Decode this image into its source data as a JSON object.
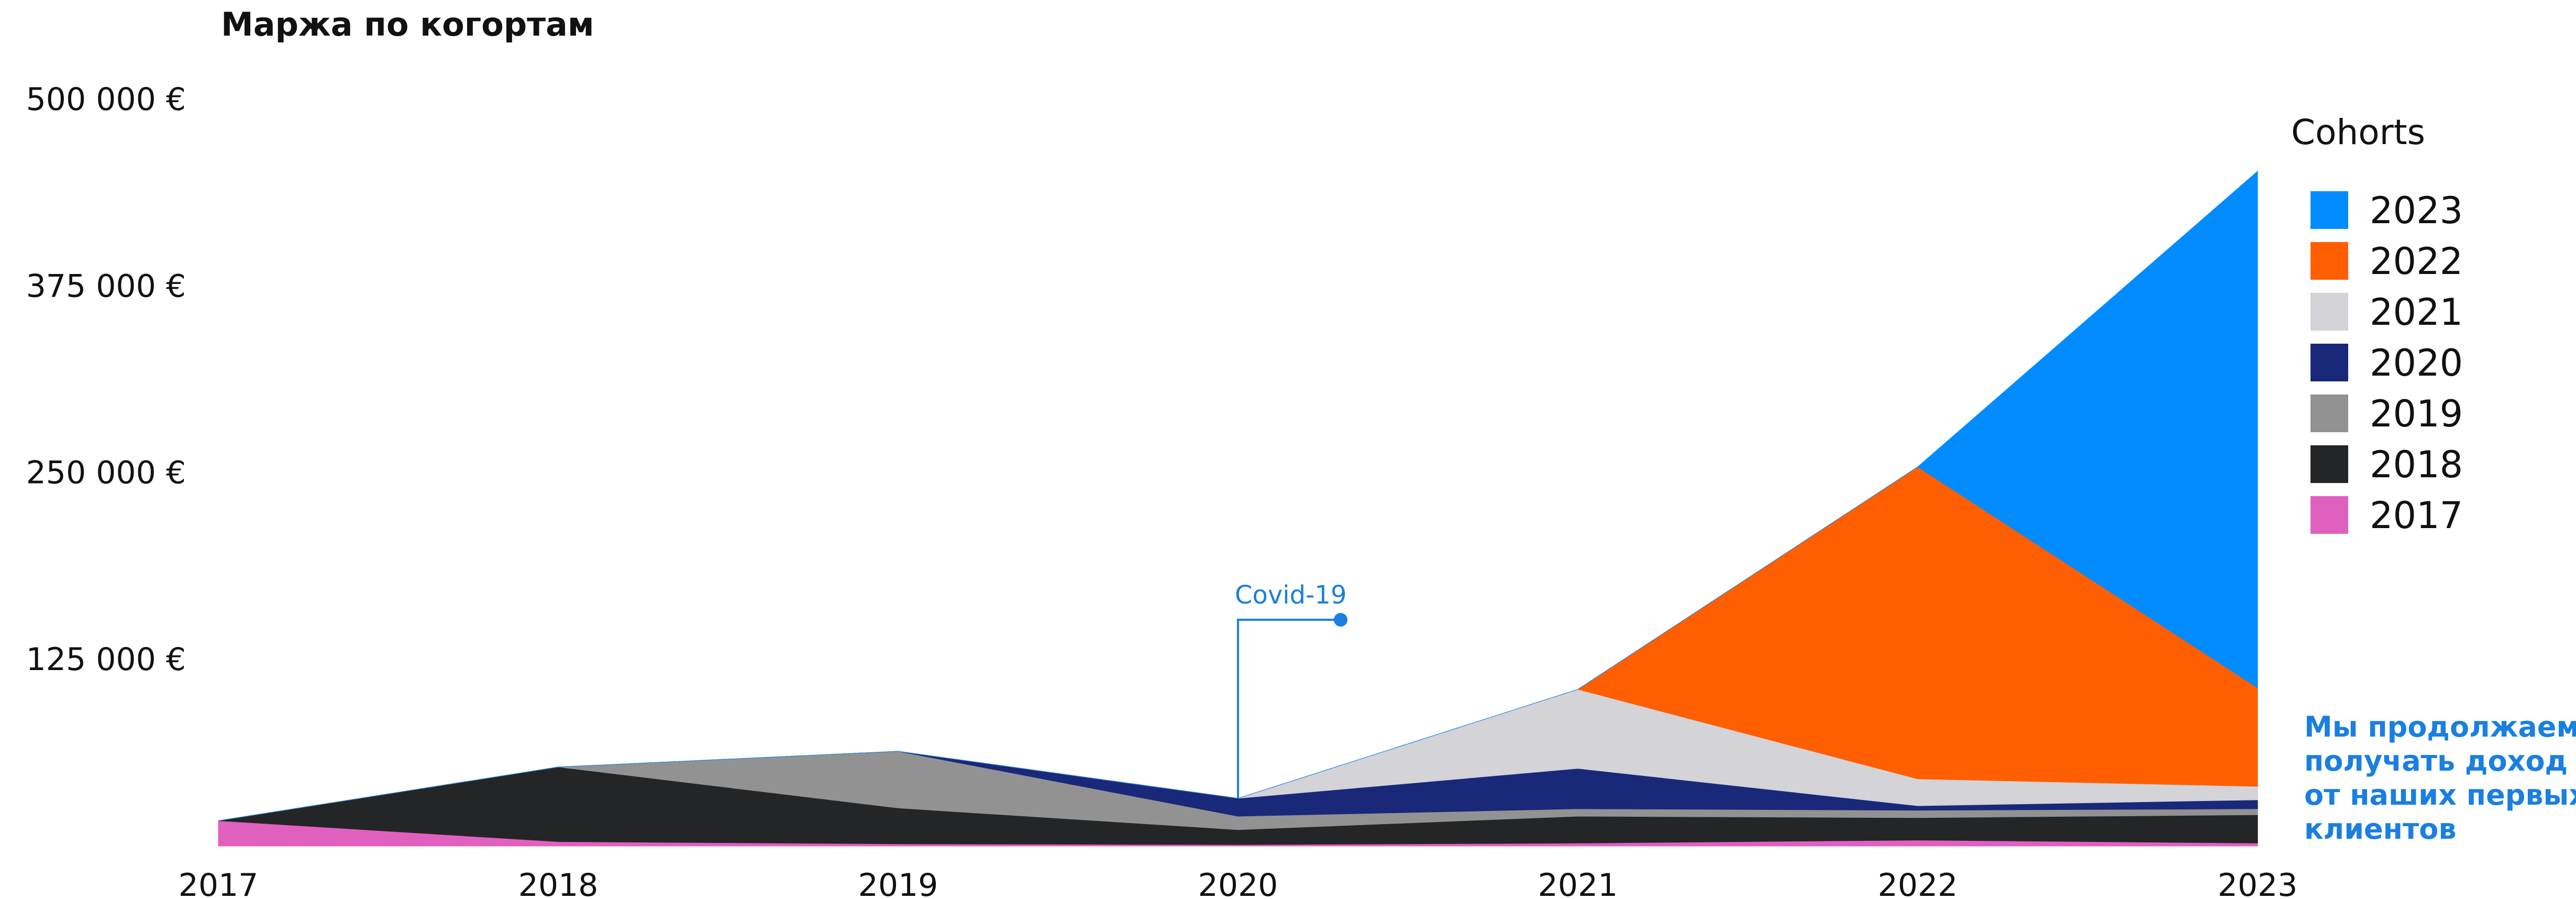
{
  "chart_data": {
    "type": "area",
    "stacked": true,
    "title": "Маржа по когортам",
    "categories": [
      "2017",
      "2018",
      "2019",
      "2020",
      "2021",
      "2022",
      "2023"
    ],
    "x": [
      2017,
      2018,
      2019,
      2020,
      2021,
      2022,
      2023
    ],
    "ylim": [
      0,
      500000
    ],
    "yticks": [
      125000,
      250000,
      375000,
      500000
    ],
    "ytick_labels": [
      "125 000 €",
      "250 000 €",
      "375 000 €",
      "500 000 €"
    ],
    "grid": false,
    "legend": {
      "title": "Cohorts",
      "placement": "right"
    },
    "series": [
      {
        "name": "2017",
        "color": "#e060c0",
        "values": [
          17000,
          3000,
          1500,
          1000,
          2000,
          4000,
          2000
        ]
      },
      {
        "name": "2018",
        "color": "#242526",
        "values": [
          0,
          50000,
          24000,
          10000,
          18000,
          15000,
          19000
        ]
      },
      {
        "name": "2019",
        "color": "#929292",
        "values": [
          0,
          0,
          38000,
          9000,
          5000,
          5000,
          4000
        ]
      },
      {
        "name": "2020",
        "color": "#1a287a",
        "values": [
          0,
          0,
          0,
          12000,
          27000,
          3000,
          6000
        ]
      },
      {
        "name": "2021",
        "color": "#d3d3d8",
        "values": [
          0,
          0,
          0,
          0,
          53000,
          18000,
          9000
        ]
      },
      {
        "name": "2022",
        "color": "#ff5f00",
        "values": [
          0,
          0,
          0,
          0,
          0,
          209000,
          66000
        ]
      },
      {
        "name": "2023",
        "color": "#008cff",
        "values": [
          0,
          0,
          0,
          0,
          0,
          0,
          346000
        ]
      }
    ],
    "annotations": [
      {
        "label": "Covid-19",
        "x": 2020,
        "color": "#1a7fe0"
      }
    ],
    "note": {
      "lines": [
        "Мы продолжаем",
        "получать доход",
        "от наших первых",
        "клиентов"
      ],
      "color": "#1a7fe0"
    }
  }
}
